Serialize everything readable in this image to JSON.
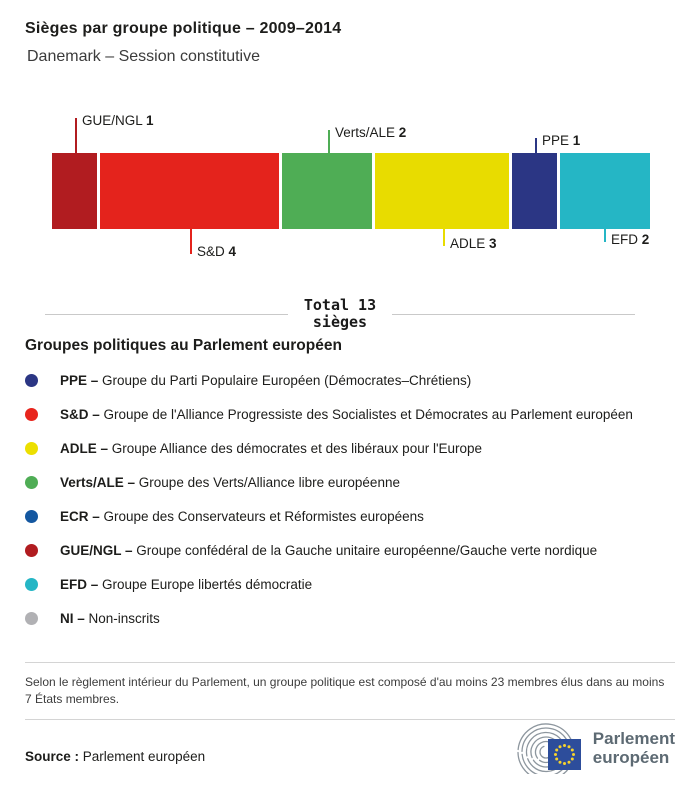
{
  "chart_data": {
    "type": "bar",
    "variant": "stacked-horizontal",
    "title": "Sièges par groupe politique – 2009–2014",
    "subtitle": "Danemark – Session constitutive",
    "total_seats": 13,
    "total_label_line1": "Total 13",
    "total_label_line2": "sièges",
    "categories": [
      "GUE/NGL",
      "S&D",
      "Verts/ALE",
      "ADLE",
      "PPE",
      "EFD"
    ],
    "values": [
      1,
      4,
      2,
      3,
      1,
      2
    ],
    "series": [
      {
        "name": "GUE/NGL",
        "seats": 1,
        "color": "#b11c20",
        "label_side": "above"
      },
      {
        "name": "S&D",
        "seats": 4,
        "color": "#e4231c",
        "label_side": "below"
      },
      {
        "name": "Verts/ALE",
        "seats": 2,
        "color": "#4fad55",
        "label_side": "above"
      },
      {
        "name": "ADLE",
        "seats": 3,
        "color": "#e8dc00",
        "label_side": "below"
      },
      {
        "name": "PPE",
        "seats": 1,
        "color": "#2b3684",
        "label_side": "above"
      },
      {
        "name": "EFD",
        "seats": 2,
        "color": "#25b6c5",
        "label_side": "below"
      }
    ]
  },
  "legend": {
    "heading": "Groupes politiques au Parlement européen",
    "items": [
      {
        "abbr": "PPE",
        "color": "#2b3684",
        "description": "Groupe du Parti Populaire Européen (Démocrates–Chrétiens)"
      },
      {
        "abbr": "S&D",
        "color": "#e8251d",
        "description": "Groupe de l'Alliance Progressiste des Socialistes et Démocrates au Parlement européen"
      },
      {
        "abbr": "ADLE",
        "color": "#ecdf00",
        "description": "Groupe Alliance des démocrates et des libéraux pour l'Europe"
      },
      {
        "abbr": "Verts/ALE",
        "color": "#4fad55",
        "description": "Groupe des Verts/Alliance libre européenne"
      },
      {
        "abbr": "ECR",
        "color": "#1457a0",
        "description": "Groupe des Conservateurs et Réformistes européens"
      },
      {
        "abbr": "GUE/NGL",
        "color": "#b11c20",
        "description": "Groupe confédéral de la Gauche unitaire européenne/Gauche verte nordique"
      },
      {
        "abbr": "EFD",
        "color": "#25b6c5",
        "description": "Groupe Europe libertés démocratie"
      },
      {
        "abbr": "NI",
        "color": "#b1b1b4",
        "description": "Non-inscrits"
      }
    ]
  },
  "note": "Selon le règlement intérieur du Parlement, un groupe politique est composé d'au moins 23 membres élus dans au moins 7 États membres.",
  "source": {
    "label": "Source :",
    "text": "Parlement européen"
  },
  "logo": {
    "line1": "Parlement",
    "line2": "européen",
    "flag_blue": "#2d4d9b",
    "star_yellow": "#f6d32d"
  }
}
